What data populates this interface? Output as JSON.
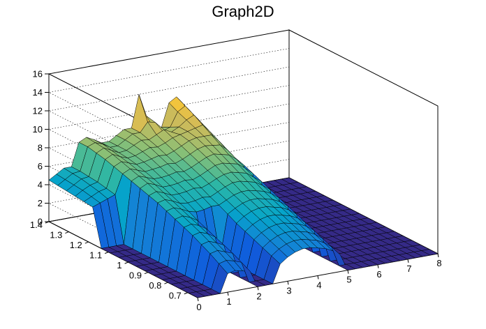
{
  "chart_data": {
    "type": "surface",
    "title": "Graph2D",
    "xlim": [
      0,
      8
    ],
    "ylim": [
      0.65,
      1.4
    ],
    "zlim": [
      0,
      16
    ],
    "x_ticks": [
      "0",
      "1",
      "2",
      "3",
      "4",
      "5",
      "6",
      "7",
      "8"
    ],
    "y_ticks": [
      "0.7",
      "0.8",
      "0.9",
      "1",
      "1.1",
      "1.2",
      "1.3",
      "1.4"
    ],
    "z_ticks": [
      "0",
      "2",
      "4",
      "6",
      "8",
      "10",
      "12",
      "14",
      "16"
    ],
    "grid": true,
    "colormap": [
      "#352a87",
      "#0f5cdd",
      "#1481d6",
      "#06a4ca",
      "#2eb7a4",
      "#87bf77",
      "#d1bb59",
      "#fec832",
      "#f9fb0e"
    ],
    "surface_z": [
      [
        4.5,
        5.0,
        5.5,
        5.5,
        8.0,
        8.4,
        8.0,
        7.5,
        7.5,
        8.0,
        8.5,
        8.5,
        12.0,
        9.5,
        8.0,
        8.0,
        10.5,
        11.0,
        10.0,
        8.0,
        0.0,
        0.0,
        0.0,
        0.0,
        0.0,
        0.0,
        0.0,
        0.0,
        0.0,
        0.0,
        0.0,
        0.0,
        0.0
      ],
      [
        4.4,
        4.9,
        5.4,
        5.5,
        8.0,
        8.3,
        8.0,
        7.5,
        7.5,
        8.0,
        8.5,
        8.5,
        9.5,
        9.3,
        8.2,
        8.5,
        10.0,
        10.5,
        9.5,
        7.8,
        0.0,
        0.0,
        0.0,
        0.0,
        0.0,
        0.0,
        0.0,
        0.0,
        0.0,
        0.0,
        0.0,
        0.0,
        0.0
      ],
      [
        4.3,
        4.8,
        5.3,
        5.4,
        7.8,
        8.2,
        7.8,
        7.4,
        7.5,
        7.9,
        8.3,
        8.2,
        8.6,
        9.0,
        8.6,
        9.0,
        9.6,
        10.0,
        9.0,
        7.5,
        0.0,
        0.0,
        0.0,
        0.0,
        0.0,
        0.0,
        0.0,
        0.0,
        0.0,
        0.0,
        0.0,
        0.0,
        0.0
      ],
      [
        4.2,
        4.7,
        5.1,
        5.3,
        7.6,
        8.0,
        7.6,
        7.3,
        7.4,
        7.7,
        8.0,
        7.9,
        8.2,
        8.6,
        8.8,
        9.0,
        9.2,
        9.4,
        8.5,
        7.2,
        0.0,
        0.0,
        0.0,
        0.0,
        0.0,
        0.0,
        0.0,
        0.0,
        0.0,
        0.0,
        0.0,
        0.0,
        0.0
      ],
      [
        4.1,
        4.5,
        4.9,
        5.1,
        7.3,
        7.7,
        7.4,
        7.1,
        7.2,
        7.4,
        7.6,
        7.5,
        7.8,
        8.2,
        8.6,
        8.8,
        8.8,
        8.8,
        8.0,
        6.9,
        0.0,
        0.0,
        0.0,
        0.0,
        0.0,
        0.0,
        0.0,
        0.0,
        0.0,
        0.0,
        0.0,
        0.0,
        0.0
      ],
      [
        4.0,
        4.3,
        4.6,
        4.9,
        7.0,
        7.4,
        7.1,
        6.8,
        6.9,
        7.0,
        7.2,
        7.1,
        7.4,
        7.8,
        8.2,
        8.4,
        8.3,
        8.2,
        7.5,
        6.5,
        0.0,
        0.0,
        0.0,
        0.0,
        0.0,
        0.0,
        0.0,
        0.0,
        0.0,
        0.0,
        0.0,
        0.0,
        0.0
      ],
      [
        0.0,
        0.0,
        0.0,
        0.0,
        6.7,
        7.1,
        6.8,
        6.5,
        6.5,
        6.6,
        6.8,
        6.7,
        7.0,
        7.4,
        7.8,
        8.0,
        7.8,
        7.6,
        7.0,
        6.2,
        0.0,
        0.0,
        0.0,
        0.0,
        0.0,
        0.0,
        0.0,
        0.0,
        0.0,
        0.0,
        0.0,
        0.0,
        0.0
      ],
      [
        0.0,
        0.0,
        0.0,
        0.0,
        6.4,
        6.8,
        6.5,
        6.1,
        6.1,
        6.2,
        6.4,
        6.3,
        6.6,
        7.0,
        7.4,
        7.5,
        7.3,
        7.1,
        6.5,
        5.8,
        0.0,
        0.0,
        0.0,
        0.0,
        0.0,
        0.0,
        0.0,
        0.0,
        0.0,
        0.0,
        0.0,
        0.0,
        0.0
      ],
      [
        0.0,
        0.0,
        0.0,
        0.0,
        6.1,
        6.4,
        6.1,
        5.7,
        5.7,
        5.8,
        6.0,
        5.9,
        6.2,
        6.6,
        6.9,
        7.0,
        6.8,
        6.6,
        6.0,
        5.4,
        0.0,
        0.0,
        0.0,
        0.0,
        0.0,
        0.0,
        0.0,
        0.0,
        0.0,
        0.0,
        0.0,
        0.0,
        0.0
      ],
      [
        0.0,
        0.0,
        0.0,
        0.0,
        5.8,
        6.0,
        5.7,
        5.3,
        5.2,
        5.3,
        5.5,
        5.4,
        5.8,
        6.2,
        6.5,
        6.5,
        6.3,
        6.1,
        5.6,
        5.0,
        0.0,
        0.0,
        0.0,
        0.0,
        0.0,
        0.0,
        0.0,
        0.0,
        0.0,
        0.0,
        0.0,
        0.0,
        0.0
      ],
      [
        0.0,
        0.0,
        0.0,
        0.0,
        5.4,
        5.6,
        5.3,
        4.9,
        4.7,
        4.8,
        5.0,
        5.0,
        5.4,
        5.8,
        6.0,
        6.0,
        5.8,
        5.6,
        5.2,
        4.6,
        0.0,
        0.0,
        0.0,
        0.0,
        0.0,
        0.0,
        0.0,
        0.0,
        0.0,
        0.0,
        0.0,
        0.0,
        0.0
      ],
      [
        0.0,
        0.0,
        0.0,
        0.0,
        5.0,
        5.2,
        4.9,
        4.4,
        0.0,
        0.0,
        0.0,
        4.5,
        5.0,
        5.4,
        5.6,
        5.6,
        5.4,
        5.2,
        4.8,
        4.2,
        0.0,
        0.0,
        0.0,
        0.0,
        0.0,
        0.0,
        0.0,
        0.0,
        0.0,
        0.0,
        0.0,
        0.0,
        0.0
      ],
      [
        0.0,
        0.0,
        0.0,
        0.0,
        4.6,
        4.8,
        4.5,
        4.0,
        0.0,
        0.0,
        0.0,
        4.0,
        4.6,
        5.0,
        5.2,
        5.2,
        5.0,
        4.8,
        4.4,
        3.8,
        0.0,
        0.0,
        0.0,
        0.0,
        0.0,
        0.0,
        0.0,
        0.0,
        0.0,
        0.0,
        0.0,
        0.0,
        0.0
      ],
      [
        0.0,
        0.0,
        0.0,
        0.0,
        4.2,
        4.4,
        4.1,
        3.6,
        0.0,
        0.0,
        0.0,
        3.6,
        4.2,
        4.6,
        4.8,
        4.8,
        4.6,
        4.4,
        4.0,
        3.4,
        0.0,
        0.0,
        0.0,
        0.0,
        0.0,
        0.0,
        0.0,
        0.0,
        0.0,
        0.0,
        0.0,
        0.0,
        0.0
      ],
      [
        0.0,
        0.0,
        0.0,
        0.0,
        3.7,
        3.9,
        3.6,
        3.2,
        0.0,
        0.0,
        0.0,
        3.2,
        3.8,
        4.2,
        4.4,
        4.4,
        4.2,
        4.0,
        3.6,
        3.0,
        0.0,
        0.0,
        0.0,
        0.0,
        0.0,
        0.0,
        0.0,
        0.0,
        0.0,
        0.0,
        0.0,
        0.0,
        0.0
      ],
      [
        0.0,
        0.0,
        0.0,
        0.0,
        3.2,
        3.4,
        3.1,
        2.8,
        0.0,
        0.0,
        0.0,
        2.8,
        3.4,
        3.8,
        4.0,
        4.0,
        3.8,
        3.6,
        3.2,
        2.6,
        0.0,
        0.0,
        0.0,
        0.0,
        0.0,
        0.0,
        0.0,
        0.0,
        0.0,
        0.0,
        0.0,
        0.0,
        0.0
      ],
      [
        0.0,
        0.0,
        0.0,
        0.0,
        2.6,
        2.8,
        2.6,
        2.3,
        0.0,
        0.0,
        0.0,
        2.4,
        3.0,
        3.4,
        3.6,
        3.6,
        3.4,
        3.2,
        2.8,
        2.2,
        0.0,
        0.0,
        0.0,
        0.0,
        0.0,
        0.0,
        0.0,
        0.0,
        0.0,
        0.0,
        0.0,
        0.0,
        0.0
      ],
      [
        0.0,
        0.0,
        0.0,
        0.0,
        2.0,
        2.2,
        2.0,
        1.8,
        0.0,
        0.0,
        0.0,
        2.0,
        2.6,
        3.0,
        3.2,
        3.2,
        3.0,
        2.8,
        2.4,
        1.8,
        0.0,
        0.0,
        0.0,
        0.0,
        0.0,
        0.0,
        0.0,
        0.0,
        0.0,
        0.0,
        0.0,
        0.0,
        0.0
      ]
    ]
  }
}
